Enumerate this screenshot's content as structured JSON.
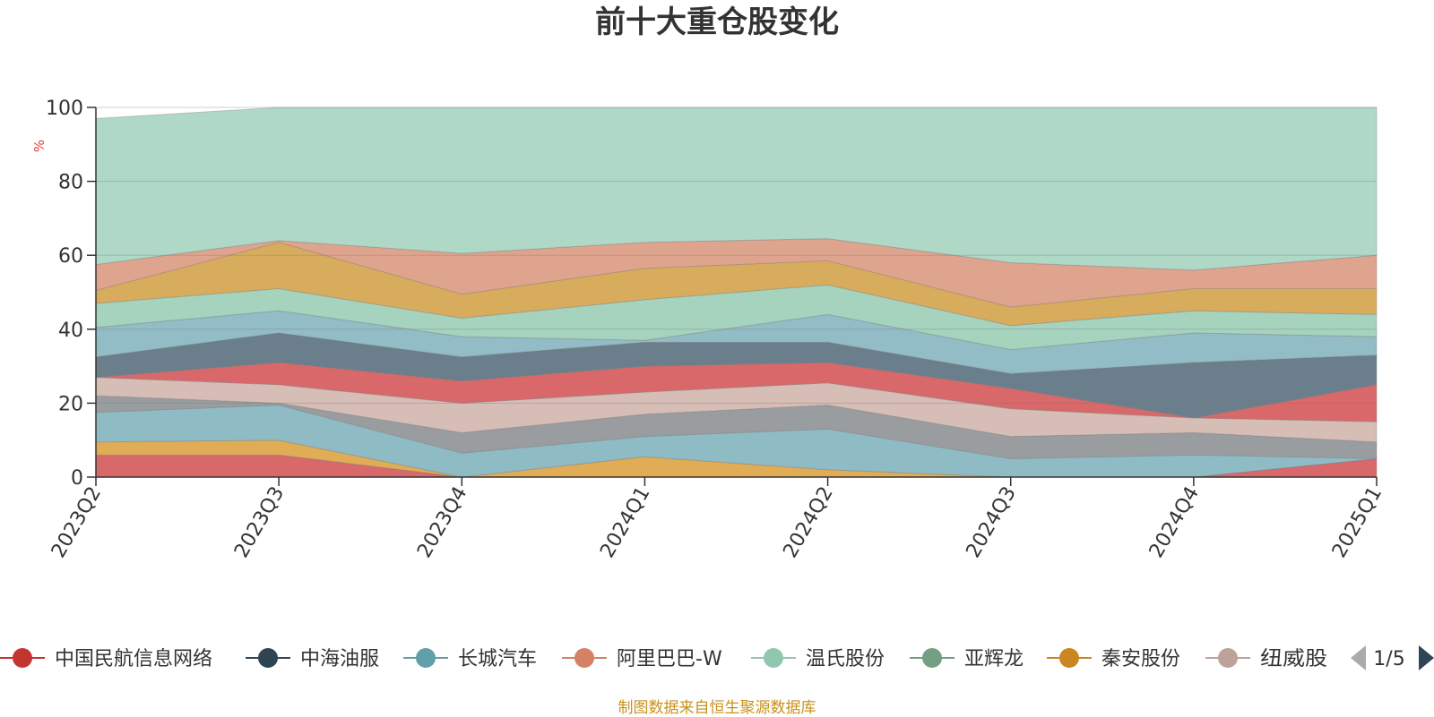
{
  "chart_data": {
    "type": "area",
    "title": "前十大重仓股变化",
    "ylabel": "%",
    "xlabel": "",
    "ylim": [
      0,
      100
    ],
    "yticks": [
      0,
      20,
      40,
      60,
      80,
      100
    ],
    "categories": [
      "2023Q2",
      "2023Q3",
      "2023Q4",
      "2024Q1",
      "2024Q2",
      "2024Q3",
      "2024Q4",
      "2025Q1"
    ],
    "stack_bounds": [
      [
        0,
        0,
        0,
        0,
        0,
        0,
        0,
        0
      ],
      [
        6,
        6,
        0,
        0,
        0,
        0,
        0,
        5
      ],
      [
        9.5,
        10,
        0,
        5.5,
        2,
        0,
        0,
        5
      ],
      [
        17.5,
        19.5,
        6.5,
        11,
        13,
        5,
        6,
        5
      ],
      [
        22,
        20,
        12,
        17,
        19.5,
        11,
        12,
        9.5
      ],
      [
        27,
        25,
        20,
        23,
        25.5,
        18.5,
        16,
        15
      ],
      [
        27,
        31,
        26,
        30,
        31,
        24,
        16,
        25
      ],
      [
        32.5,
        39,
        32.5,
        36.5,
        36.5,
        28,
        31,
        33
      ],
      [
        40.5,
        45,
        38,
        37,
        44,
        34.5,
        39,
        38
      ],
      [
        47,
        51,
        43,
        48,
        52,
        41,
        45,
        44
      ],
      [
        50.5,
        63.5,
        49.5,
        56.5,
        58.5,
        46,
        51,
        51
      ],
      [
        57.5,
        64,
        60.5,
        63.5,
        64.5,
        58,
        56,
        60
      ],
      [
        97,
        100,
        100,
        100,
        100,
        100,
        100,
        100
      ]
    ],
    "layer_colors": [
      "#d9686a",
      "#e0ac55",
      "#8fbbc5",
      "#9a9da0",
      "#d6bdb6",
      "#d9686a",
      "#6b7e8b",
      "#92bcc6",
      "#a5d3be",
      "#d8ac5d",
      "#dfa48d",
      "#b0d8c6"
    ],
    "legend": {
      "items": [
        {
          "name": "中国民航信息网络",
          "color": "#c23531"
        },
        {
          "name": "中海油服",
          "color": "#2f4554"
        },
        {
          "name": "长城汽车",
          "color": "#61a0a8"
        },
        {
          "name": "阿里巴巴-W",
          "color": "#d48265"
        },
        {
          "name": "温氏股份",
          "color": "#91c7ae"
        },
        {
          "name": "亚辉龙",
          "color": "#749f83"
        },
        {
          "name": "秦安股份",
          "color": "#ca8622"
        },
        {
          "name": "纽威股份",
          "color": "#bda29a"
        }
      ],
      "page": "1/5"
    }
  },
  "footer": {
    "source": "制图数据来自恒生聚源数据库"
  }
}
